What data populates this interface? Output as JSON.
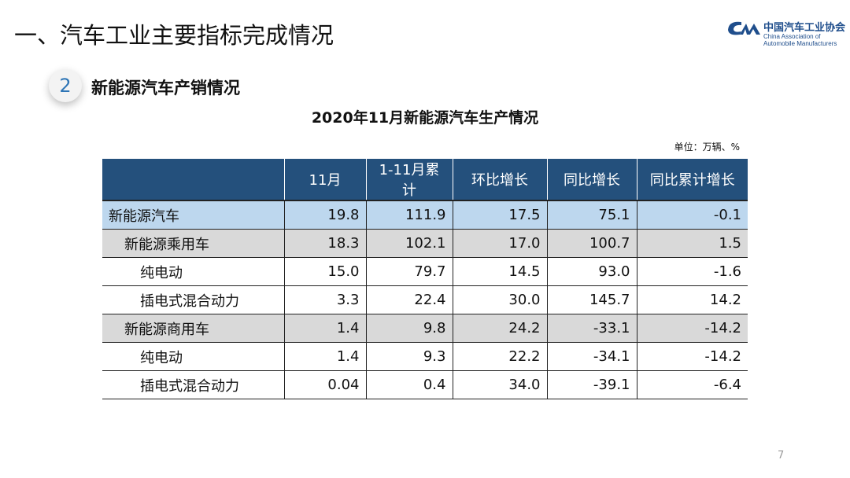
{
  "slide_title": "一、汽车工业主要指标完成情况",
  "logo": {
    "cn": "中国汽车工业协会",
    "en": "China Association of Automobile Manufacturers",
    "mark": "CAM"
  },
  "section": {
    "number": "2",
    "title": "新能源汽车产销情况"
  },
  "table_title": "2020年11月新能源汽车生产情况",
  "unit": "单位：万辆、%",
  "headers": [
    "",
    "11月",
    "1-11月累计",
    "环比增长",
    "同比增长",
    "同比累计增长"
  ],
  "rows": [
    {
      "level": 0,
      "cells": [
        "新能源汽车",
        "19.8",
        "111.9",
        "17.5",
        "75.1",
        "-0.1"
      ]
    },
    {
      "level": 1,
      "cells": [
        "新能源乘用车",
        "18.3",
        "102.1",
        "17.0",
        "100.7",
        "1.5"
      ]
    },
    {
      "level": 2,
      "cells": [
        "纯电动",
        "15.0",
        "79.7",
        "14.5",
        "93.0",
        "-1.6"
      ]
    },
    {
      "level": 2,
      "cells": [
        "插电式混合动力",
        "3.3",
        "22.4",
        "30.0",
        "145.7",
        "14.2"
      ]
    },
    {
      "level": 1,
      "cells": [
        "新能源商用车",
        "1.4",
        "9.8",
        "24.2",
        "-33.1",
        "-14.2"
      ]
    },
    {
      "level": 2,
      "cells": [
        "纯电动",
        "1.4",
        "9.3",
        "22.2",
        "-34.1",
        "-14.2"
      ]
    },
    {
      "level": 2,
      "cells": [
        "插电式混合动力",
        "0.04",
        "0.4",
        "34.0",
        "-39.1",
        "-6.4"
      ]
    }
  ],
  "page_number": "7",
  "colors": {
    "header": "#24507c",
    "total_row": "#bdd7ee",
    "subtotal_row": "#d9d9d9"
  }
}
